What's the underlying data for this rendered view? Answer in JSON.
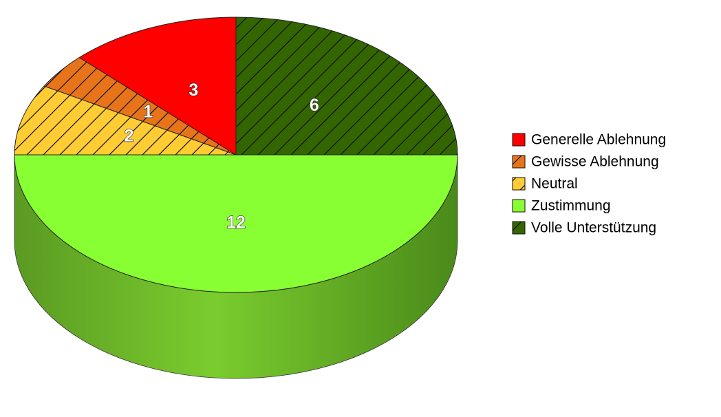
{
  "chart_data": {
    "type": "pie",
    "categories": [
      "Generelle Ablehnung",
      "Gewisse Ablehnung",
      "Neutral",
      "Zustimmung",
      "Volle Unterstützung"
    ],
    "values": [
      3,
      1,
      2,
      12,
      6
    ],
    "colors": [
      "#ff0000",
      "#e8741a",
      "#ffcc33",
      "#88ff33",
      "#336600"
    ],
    "hatch": [
      false,
      true,
      true,
      false,
      true
    ],
    "legend": "right"
  }
}
